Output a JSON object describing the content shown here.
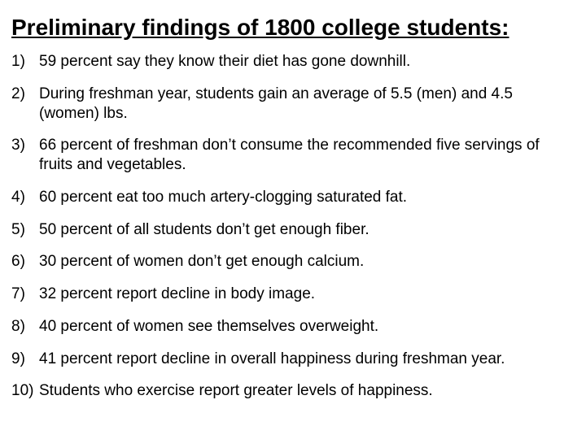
{
  "title": "Preliminary findings of 1800 college students:",
  "title_fontsize": 28,
  "body_fontsize": 19,
  "font_family": "Comic Sans MS",
  "text_color": "#000000",
  "background_color": "#ffffff",
  "items": [
    {
      "n": "1)",
      "text": "59 percent say they know their diet has gone downhill."
    },
    {
      "n": "2)",
      "text": "During freshman year, students gain an average of 5.5 (men) and 4.5 (women) lbs."
    },
    {
      "n": "3)",
      "text": "66 percent of freshman don’t consume the recommended five servings of fruits and vegetables."
    },
    {
      "n": "4)",
      "text": "60 percent eat too much artery-clogging saturated fat."
    },
    {
      "n": "5)",
      "text": "50 percent of all students don’t get enough fiber."
    },
    {
      "n": "6)",
      "text": "30 percent of women don’t get enough calcium."
    },
    {
      "n": "7)",
      "text": "32 percent report decline in body image."
    },
    {
      "n": "8)",
      "text": "40 percent of women see themselves overweight."
    },
    {
      "n": "9)",
      "text": "41 percent report decline in overall happiness during freshman year."
    },
    {
      "n": "10)",
      "text": "Students who exercise report greater levels of happiness."
    }
  ]
}
